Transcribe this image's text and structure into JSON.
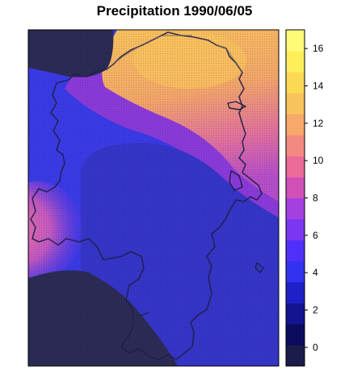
{
  "title": "Precipitation 1990/06/05",
  "legend": {
    "ticks": [
      {
        "value": 0,
        "label": "0"
      },
      {
        "value": 2,
        "label": "2"
      },
      {
        "value": 4,
        "label": "4"
      },
      {
        "value": 6,
        "label": "6"
      },
      {
        "value": 8,
        "label": "8"
      },
      {
        "value": 10,
        "label": "10"
      },
      {
        "value": 12,
        "label": "12"
      },
      {
        "value": 14,
        "label": "14"
      },
      {
        "value": 16,
        "label": "16"
      }
    ],
    "range": [
      -1,
      17
    ],
    "colors": [
      "#1c1c4a",
      "#0b0b5e",
      "#141490",
      "#2020c8",
      "#3232f0",
      "#5030f8",
      "#7a36f0",
      "#a440e0",
      "#d050b8",
      "#ea6a9a",
      "#f38a80",
      "#f7a86a",
      "#f9c35c",
      "#fbd955",
      "#fdee5a",
      "#fffa78"
    ]
  },
  "palette": {
    "deep": "#2b2b55",
    "blue": "#3a3ae6",
    "mid_blue": "#3535c8",
    "purple": "#8a3ad8",
    "pink": "#d35fae",
    "orange": "#f2a56a",
    "yellow": "#f8cc62"
  }
}
